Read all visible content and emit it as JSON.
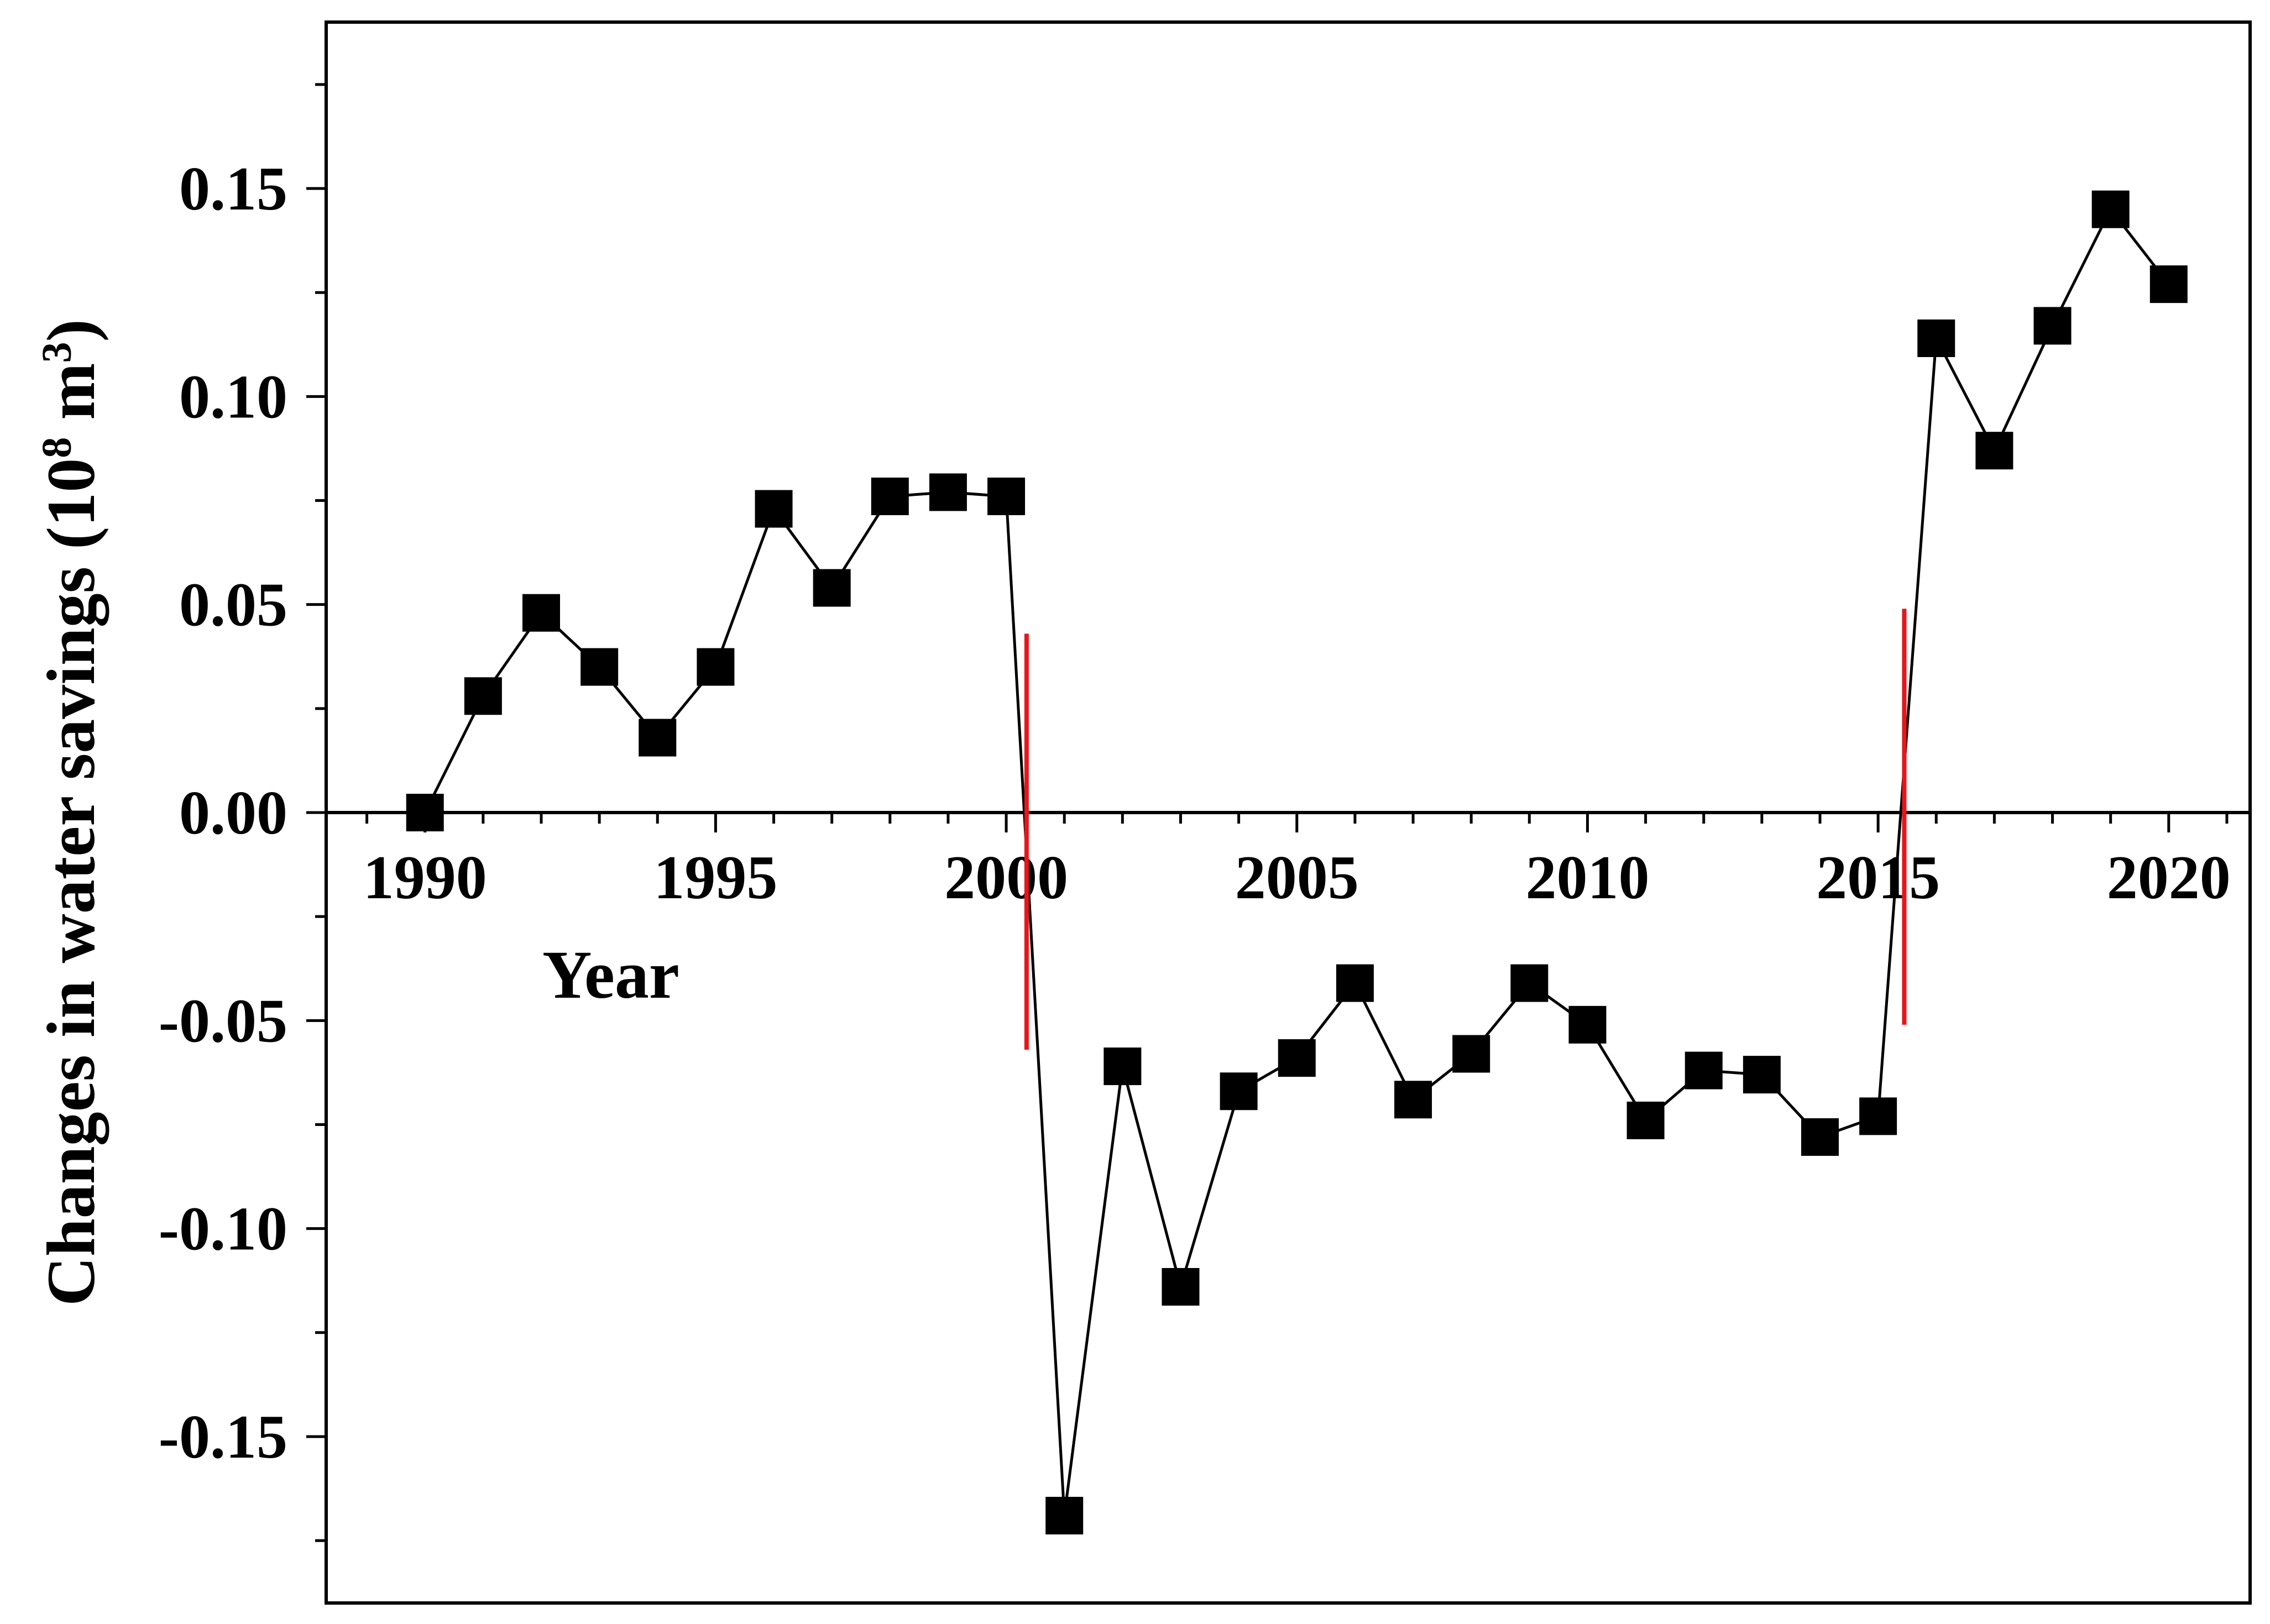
{
  "chart_data": {
    "type": "line",
    "title": "",
    "xlabel": "Year",
    "ylabel": {
      "text": "Changes in water savings (10",
      "sup1": "8",
      "mid": " m",
      "sup2": "3",
      "end": ")"
    },
    "xlim": [
      1988.3,
      2021.4
    ],
    "ylim": [
      -0.19,
      0.19
    ],
    "x_ticks": [
      1990,
      1995,
      2000,
      2005,
      2010,
      2015,
      2020
    ],
    "x_tick_labels": [
      "1990",
      "1995",
      "2000",
      "2005",
      "2010",
      "2015",
      "2020"
    ],
    "y_ticks": [
      -0.15,
      -0.1,
      -0.05,
      0.0,
      0.05,
      0.1,
      0.15
    ],
    "y_tick_labels": [
      "-0.15",
      "-0.10",
      "-0.05",
      "0.00",
      "0.05",
      "0.10",
      "0.15"
    ],
    "grid": false,
    "series": [
      {
        "marker": "square",
        "color": "#000000",
        "x": [
          1990,
          1991,
          1992,
          1993,
          1994,
          1995,
          1996,
          1997,
          1998,
          1999,
          2000,
          2001,
          2002,
          2003,
          2004,
          2005,
          2006,
          2007,
          2008,
          2009,
          2010,
          2011,
          2012,
          2013,
          2014,
          2015,
          2016,
          2017,
          2018,
          2019,
          2020
        ],
        "y": [
          0.0,
          0.028,
          0.048,
          0.035,
          0.018,
          0.035,
          0.073,
          0.054,
          0.076,
          0.077,
          0.076,
          -0.169,
          -0.061,
          -0.114,
          -0.067,
          -0.059,
          -0.041,
          -0.069,
          -0.058,
          -0.041,
          -0.051,
          -0.074,
          -0.062,
          -0.063,
          -0.078,
          -0.073,
          0.114,
          0.087,
          0.117,
          0.145,
          0.127
        ]
      }
    ],
    "breakpoints": [
      {
        "x": 2000.35,
        "y_range": [
          -0.057,
          0.043
        ],
        "color": "#e8151b"
      },
      {
        "x": 2015.45,
        "y_range": [
          -0.051,
          0.049
        ],
        "color": "#e8151b"
      }
    ]
  }
}
